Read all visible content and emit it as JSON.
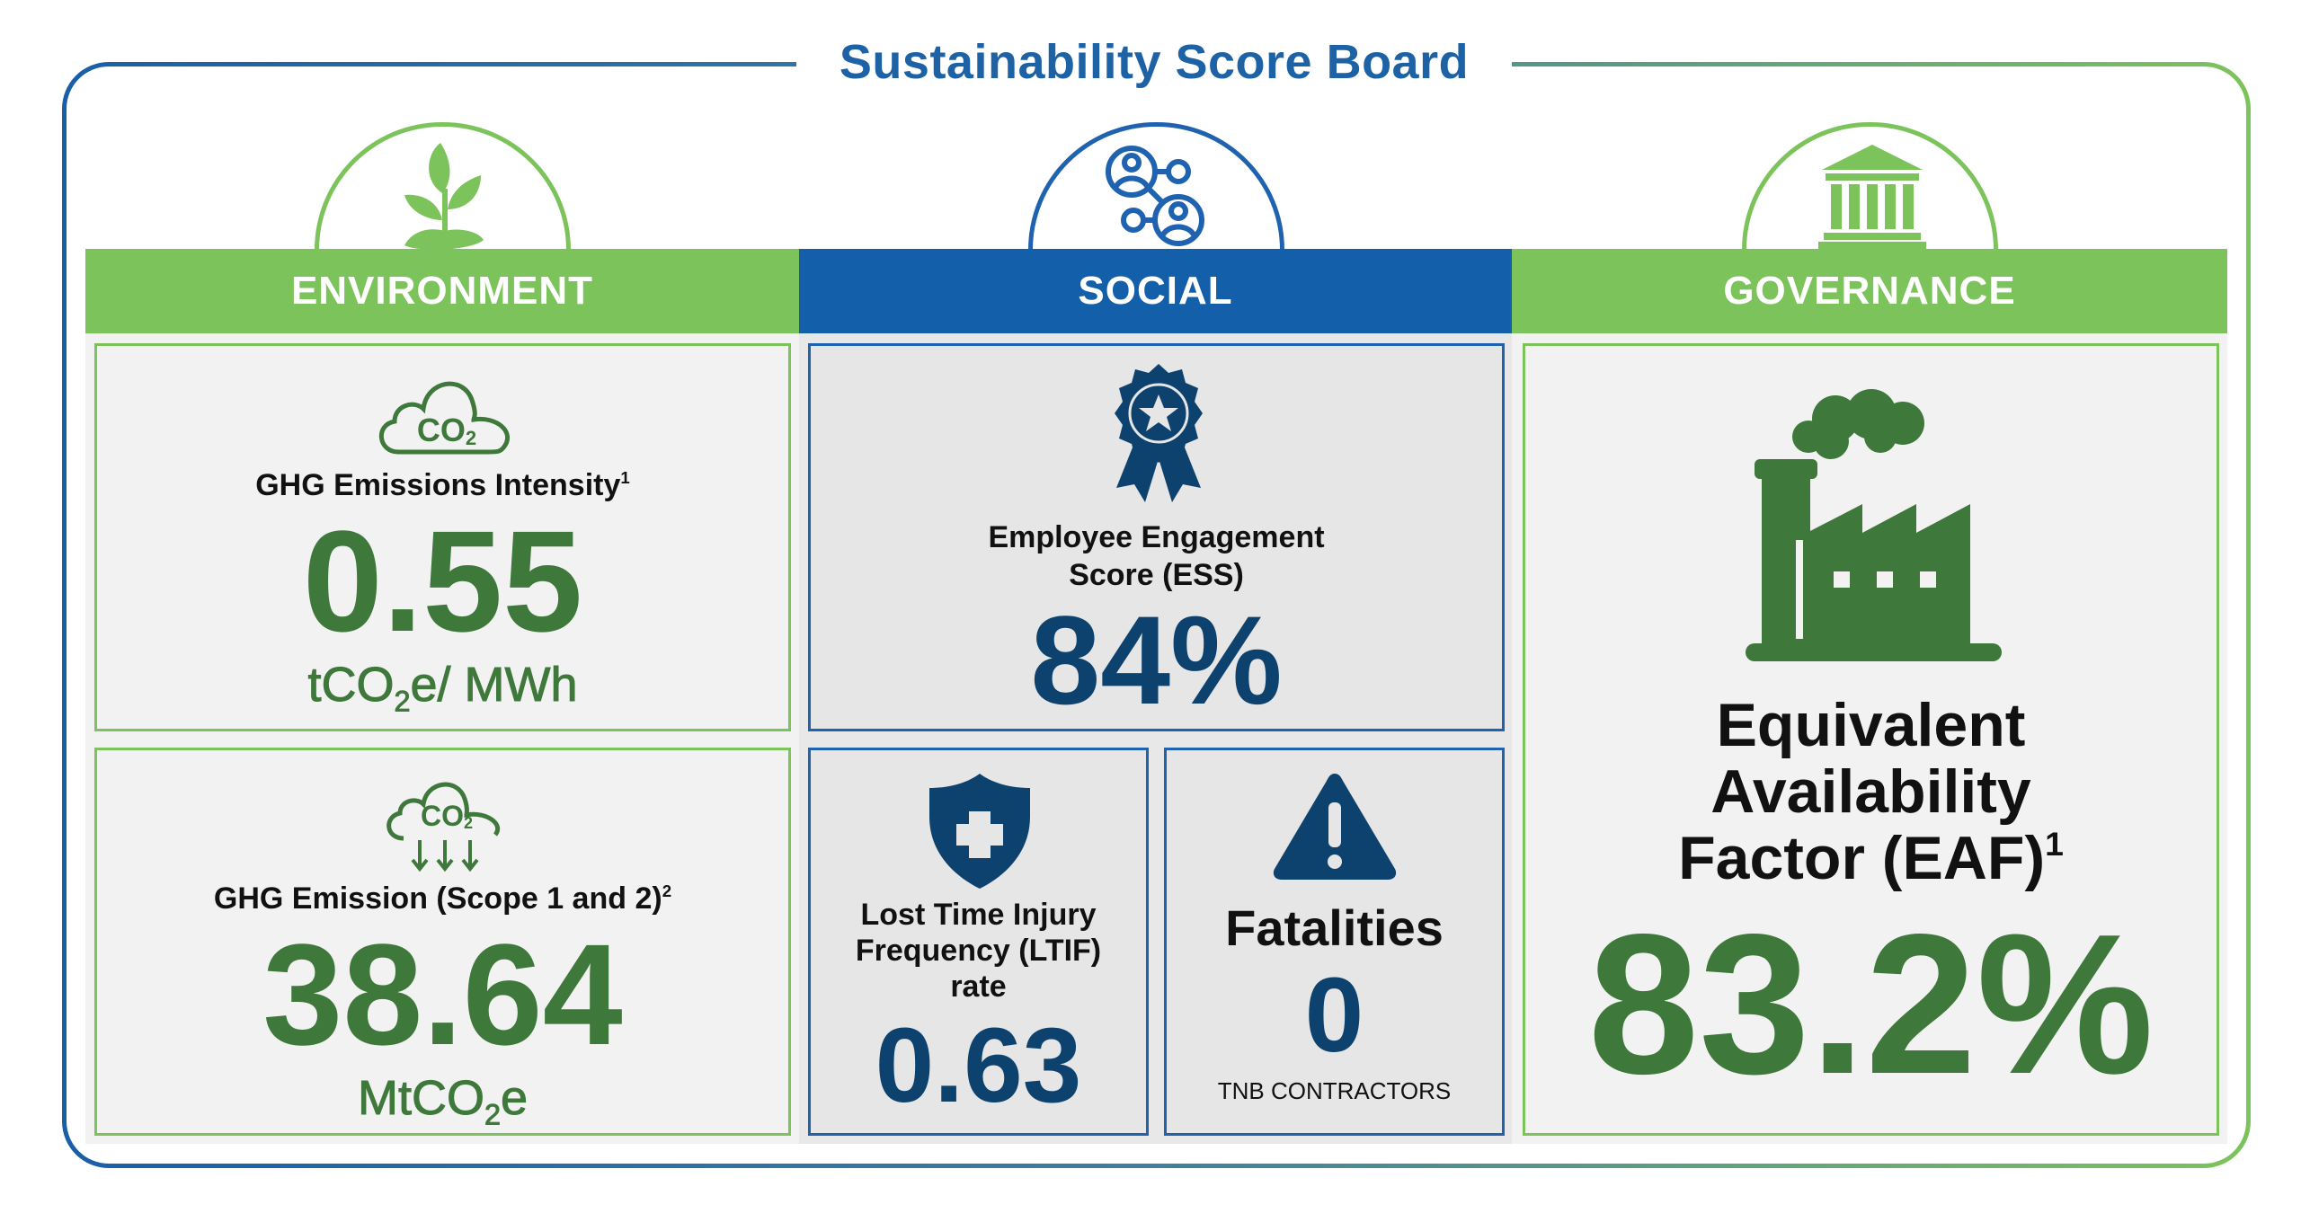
{
  "title": "Sustainability Score Board",
  "colors": {
    "green": "#7dc35c",
    "dark_green": "#3e783a",
    "blue": "#135fa9",
    "navy": "#0d426e",
    "panel": "#f2f2f2"
  },
  "environment": {
    "header": "ENVIRONMENT",
    "icon": "plant-sprout-icon",
    "metrics": [
      {
        "icon": "co2-cloud-icon",
        "label": "GHG Emissions Intensity",
        "footnote": "1",
        "value": "0.55",
        "unit": {
          "pre": "tCO",
          "sub": "2",
          "post": "e/ MWh"
        }
      },
      {
        "icon": "co2-emission-cloud-icon",
        "label": "GHG Emission (Scope 1 and 2)",
        "footnote": "2",
        "value": "38.64",
        "unit": {
          "pre": "MtCO",
          "sub": "2",
          "post": "e"
        }
      }
    ]
  },
  "social": {
    "header": "SOCIAL",
    "icon": "people-network-icon",
    "ess": {
      "icon": "award-rosette-icon",
      "label_line1": "Employee Engagement",
      "label_line2": "Score (ESS)",
      "value": "84%"
    },
    "ltif": {
      "icon": "medical-shield-icon",
      "label_line1": "Lost Time Injury",
      "label_line2": "Frequency (LTIF)",
      "label_line3": "rate",
      "value": "0.63"
    },
    "fatalities": {
      "icon": "warning-triangle-icon",
      "label": "Fatalities",
      "value": "0",
      "caption": "TNB CONTRACTORS"
    }
  },
  "governance": {
    "header": "GOVERNANCE",
    "icon": "institution-building-icon",
    "eaf": {
      "icon": "factory-icon",
      "label_line1": "Equivalent",
      "label_line2": "Availability",
      "label_line3": "Factor (EAF)",
      "footnote": "1",
      "value": "83.2%"
    }
  }
}
